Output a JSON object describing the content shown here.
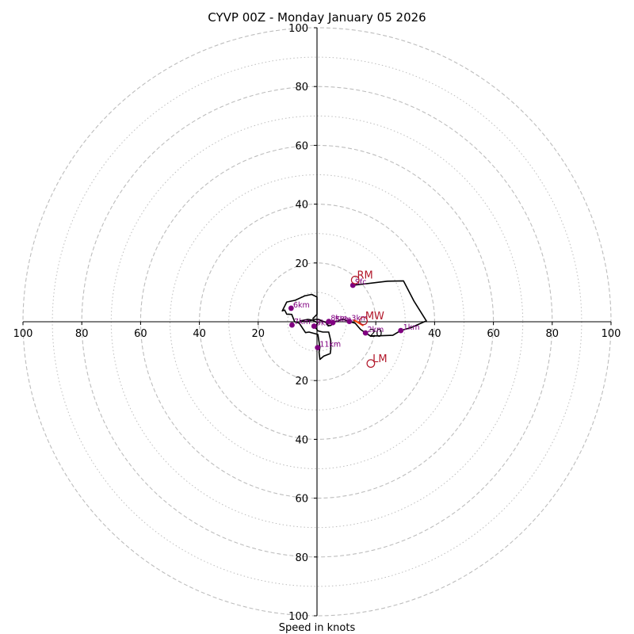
{
  "chart_data": {
    "type": "hodograph",
    "title": "CYVP 00Z - Monday January 05 2026",
    "xlabel": "Speed in knots",
    "units": "knots",
    "range": [
      -100,
      100
    ],
    "ring_major": [
      20,
      40,
      60,
      80,
      100
    ],
    "ring_minor": [
      10,
      30,
      50,
      70,
      90
    ],
    "tick_labels": {
      "x": [
        {
          "value": -100,
          "text": "100"
        },
        {
          "value": -80,
          "text": "80"
        },
        {
          "value": -60,
          "text": "60"
        },
        {
          "value": -40,
          "text": "40"
        },
        {
          "value": -20,
          "text": "20"
        },
        {
          "value": 20,
          "text": "20"
        },
        {
          "value": 40,
          "text": "40"
        },
        {
          "value": 60,
          "text": "60"
        },
        {
          "value": 80,
          "text": "80"
        },
        {
          "value": 100,
          "text": "100"
        }
      ],
      "y": [
        {
          "value": 100,
          "text": "100"
        },
        {
          "value": 80,
          "text": "80"
        },
        {
          "value": 60,
          "text": "60"
        },
        {
          "value": 40,
          "text": "40"
        },
        {
          "value": 20,
          "text": "20"
        },
        {
          "value": -20,
          "text": "20"
        },
        {
          "value": -40,
          "text": "40"
        },
        {
          "value": -60,
          "text": "60"
        },
        {
          "value": -80,
          "text": "80"
        },
        {
          "value": -100,
          "text": "100"
        }
      ]
    },
    "trace": [
      [
        12.2,
        12.4
      ],
      [
        24,
        13.8
      ],
      [
        29.4,
        13.9
      ],
      [
        33,
        7
      ],
      [
        37.2,
        0.3
      ],
      [
        32,
        -2
      ],
      [
        28.5,
        -3
      ],
      [
        25.8,
        -4.6
      ],
      [
        20.3,
        -4.8
      ],
      [
        18.1,
        -4.8
      ],
      [
        16.5,
        -3.8
      ],
      [
        14.8,
        -2.6
      ],
      [
        13,
        -0.5
      ],
      [
        10.7,
        0.2
      ],
      [
        9,
        0.8
      ],
      [
        8,
        0.7
      ],
      [
        7,
        0.2
      ],
      [
        6,
        0.1
      ],
      [
        5.2,
        -0.3
      ],
      [
        4.8,
        -1.2
      ],
      [
        3.8,
        -1.4
      ],
      [
        3.2,
        -0.3
      ],
      [
        1.2,
        0.5
      ],
      [
        0.5,
        0.8
      ],
      [
        -0.8,
        0.8
      ],
      [
        -3.8,
        0
      ],
      [
        -5.8,
        0.3
      ],
      [
        -3.1,
        0.8
      ],
      [
        -1.4,
        0.5
      ],
      [
        0.3,
        -0.4
      ],
      [
        -0.2,
        -1
      ],
      [
        -0.5,
        -2
      ],
      [
        0.3,
        -3.1
      ],
      [
        2,
        -3.5
      ],
      [
        4,
        -3.5
      ],
      [
        4.7,
        -6.5
      ],
      [
        4.7,
        -9.4
      ],
      [
        4.5,
        -10.8
      ],
      [
        2.3,
        -11.7
      ],
      [
        1,
        -12.8
      ],
      [
        0.7,
        -10.3
      ],
      [
        1,
        -8.8
      ],
      [
        0.3,
        -4.3
      ],
      [
        -2.7,
        -3.5
      ],
      [
        -3.9,
        -3.7
      ],
      [
        -6,
        -0.5
      ],
      [
        -7.6,
        0
      ],
      [
        -8.6,
        2.5
      ],
      [
        -10.3,
        2.6
      ],
      [
        -11,
        4
      ],
      [
        -11.8,
        3.7
      ],
      [
        -10.3,
        6.7
      ],
      [
        -7.4,
        7.3
      ],
      [
        -4.2,
        8.8
      ],
      [
        -1.8,
        9.3
      ],
      [
        0,
        8.4
      ],
      [
        0,
        2.5
      ],
      [
        -1.5,
        1
      ]
    ],
    "height_points": [
      {
        "label": "Sfc",
        "u": 12.2,
        "v": 12.4,
        "lx": 0.7,
        "ly": 0.3
      },
      {
        "label": "1km",
        "u": 28.5,
        "v": -3,
        "lx": 0.8,
        "ly": 0.3
      },
      {
        "label": "2km",
        "u": 16.5,
        "v": -3.8,
        "lx": 0.6,
        "ly": 0.3
      },
      {
        "label": "3km",
        "u": 11,
        "v": 0.1,
        "lx": 0.7,
        "ly": 0.3
      },
      {
        "label": "5km",
        "u": 5.4,
        "v": -0.3,
        "lx": 0.7,
        "ly": 0.3
      },
      {
        "label": "6km",
        "u": -8.8,
        "v": 4.6,
        "lx": 0.7,
        "ly": 0.3
      },
      {
        "label": "7km",
        "u": -8.5,
        "v": -1.1,
        "lx": 0.7,
        "ly": 0.3
      },
      {
        "label": "8km",
        "u": 4,
        "v": 0.1,
        "lx": 0.7,
        "ly": 0.3
      },
      {
        "label": "9km",
        "u": -1,
        "v": -1.5,
        "lx": 0.7,
        "ly": 0.3
      },
      {
        "label": "11km",
        "u": 0.2,
        "v": -8.8,
        "lx": 0.7,
        "ly": 0.3
      }
    ],
    "storm_motion": [
      {
        "label": "RM",
        "u": 13,
        "v": 14.2,
        "lx": 0.6,
        "ly": 0.5
      },
      {
        "label": "MW",
        "u": 15.8,
        "v": 0.3,
        "lx": 0.6,
        "ly": 0.5
      },
      {
        "label": "LM",
        "u": 18.3,
        "v": -14.2,
        "lx": 0.6,
        "ly": 0.5
      }
    ],
    "colors": {
      "trace": "#000000",
      "height_points": "#800080",
      "storm_motion": "#b2182b",
      "mean_wind_vector": "#ff4500",
      "rings": "#bdbdbd",
      "axes": "#000000"
    }
  }
}
